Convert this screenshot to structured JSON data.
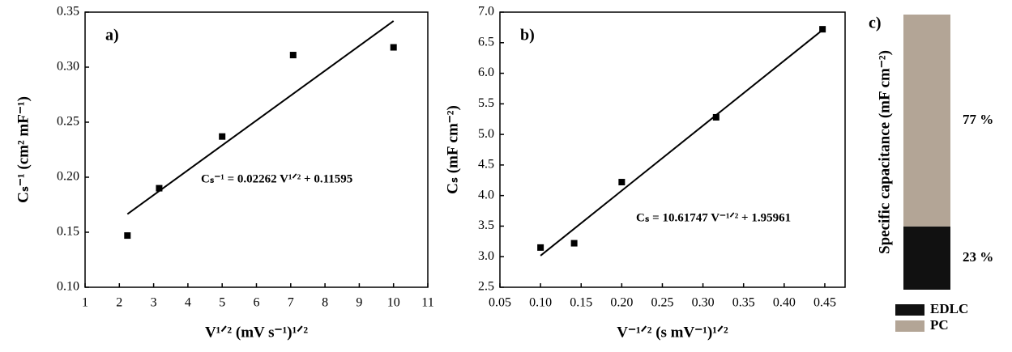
{
  "chart_data": [
    {
      "type": "scatter",
      "label": "a)",
      "x_label": "V¹ᐟ² (mV s⁻¹)¹ᐟ²",
      "y_label": "Cₛ⁻¹ (cm² mF⁻¹)",
      "annotation": "Cₛ⁻¹ = 0.02262 V¹ᐟ² + 0.11595",
      "xlim": [
        1,
        11
      ],
      "ylim": [
        0.1,
        0.35
      ],
      "xticks": [
        1,
        2,
        3,
        4,
        5,
        6,
        7,
        8,
        9,
        10,
        11
      ],
      "yticks": [
        {
          "value": 0.1,
          "label": "0.10"
        },
        0.15,
        {
          "value": 0.2,
          "label": "0.20"
        },
        0.25,
        {
          "value": 0.3,
          "label": "0.30"
        },
        0.35
      ],
      "series": [
        {
          "mode": "markers",
          "color": "#000000",
          "x": [
            2.236,
            3.162,
            5,
            7.071,
            10
          ],
          "values": [
            0.147,
            0.19,
            0.237,
            0.311,
            0.318
          ]
        },
        {
          "mode": "line",
          "color": "#000000",
          "x": [
            2.236,
            10
          ],
          "values": [
            0.1665,
            0.342
          ]
        }
      ]
    },
    {
      "type": "scatter",
      "label": "b)",
      "x_label": "V⁻¹ᐟ² (s mV⁻¹)¹ᐟ²",
      "y_label": "Cₛ (mF cm⁻²)",
      "annotation": "Cₛ = 10.61747 V⁻¹ᐟ² + 1.95961",
      "xlim": [
        0.05,
        0.475
      ],
      "ylim": [
        2.5,
        7.0
      ],
      "xticks": [
        0.05,
        {
          "value": 0.1,
          "label": "0.10"
        },
        0.15,
        {
          "value": 0.2,
          "label": "0.20"
        },
        0.25,
        {
          "value": 0.3,
          "label": "0.30"
        },
        0.35,
        {
          "value": 0.4,
          "label": "0.40"
        },
        0.45
      ],
      "yticks": [
        2.5,
        {
          "value": 3,
          "label": "3.0"
        },
        3.5,
        {
          "value": 4,
          "label": "4.0"
        },
        4.5,
        {
          "value": 5,
          "label": "5.0"
        },
        5.5,
        {
          "value": 6,
          "label": "6.0"
        },
        6.5,
        {
          "value": 7,
          "label": "7.0"
        }
      ],
      "series": [
        {
          "mode": "markers",
          "color": "#000000",
          "x": [
            0.1,
            0.1414,
            0.2,
            0.3162,
            0.4472
          ],
          "values": [
            3.15,
            3.22,
            4.22,
            5.28,
            6.72
          ]
        },
        {
          "mode": "line",
          "color": "#000000",
          "x": [
            0.1,
            0.4472
          ],
          "values": [
            3.017,
            6.708
          ]
        }
      ]
    },
    {
      "type": "stacked_bar",
      "label": "c)",
      "y_label": "Specific capacitance (mF cm⁻²)",
      "categories": [
        null
      ],
      "series": [
        {
          "name": "EDLC",
          "color": "#111111",
          "values": [
            23
          ],
          "value_labels": [
            "23 %"
          ]
        },
        {
          "name": "PC",
          "color": "#b3a596",
          "values": [
            77
          ],
          "value_labels": [
            "77 %"
          ]
        }
      ]
    }
  ]
}
